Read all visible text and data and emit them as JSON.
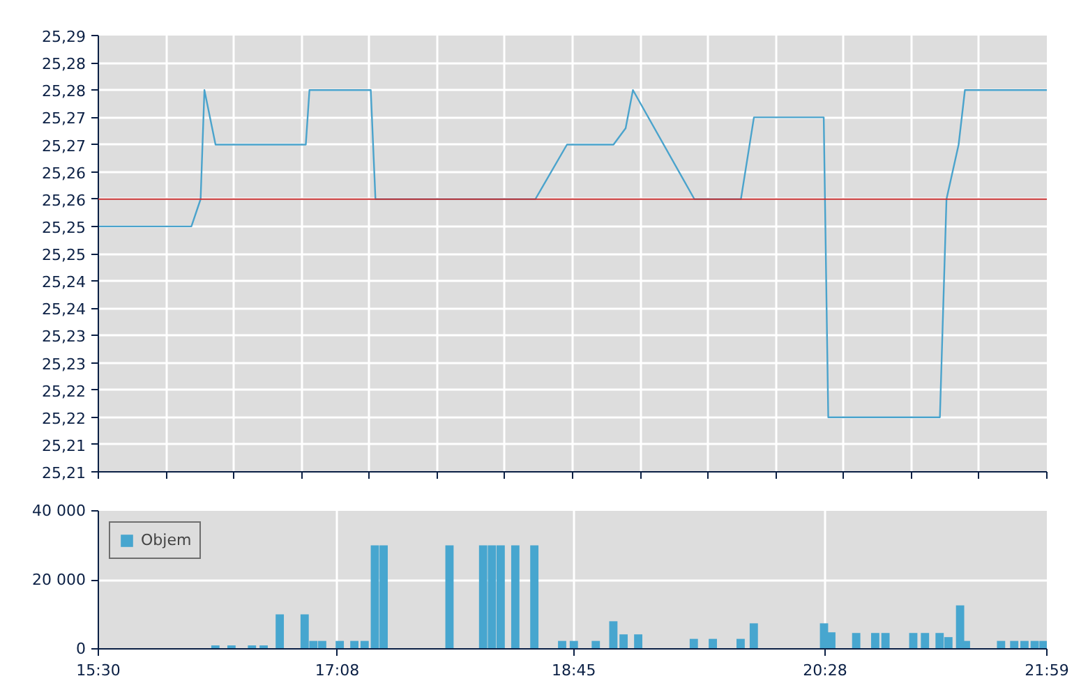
{
  "chart_data": [
    {
      "type": "line",
      "x": [
        15.5,
        16.136,
        16.199,
        16.225,
        16.301,
        16.733,
        16.918,
        16.943,
        17.362,
        17.394,
        18.487,
        18.703,
        19.021,
        19.104,
        19.154,
        19.574,
        19.892,
        19.981,
        20.458,
        20.489,
        21.252,
        21.297,
        21.38,
        21.423,
        21.983
      ],
      "series": [
        {
          "color": "#4aa3cc",
          "values": [
            25.255,
            25.255,
            25.26,
            25.28,
            25.27,
            25.27,
            25.27,
            25.28,
            25.28,
            25.26,
            25.26,
            25.27,
            25.27,
            25.273,
            25.28,
            25.26,
            25.26,
            25.275,
            25.275,
            25.22,
            25.22,
            25.26,
            25.27,
            25.28,
            25.28
          ]
        }
      ],
      "xlim": [
        15.5,
        21.983
      ],
      "xticks": [
        {
          "value": 15.5,
          "label": null
        },
        {
          "value": 15.963,
          "label": null
        },
        {
          "value": 16.426,
          "label": null
        },
        {
          "value": 16.889,
          "label": null
        },
        {
          "value": 17.352,
          "label": null
        },
        {
          "value": 17.815,
          "label": null
        },
        {
          "value": 18.279,
          "label": null
        },
        {
          "value": 18.742,
          "label": null
        },
        {
          "value": 19.205,
          "label": null
        },
        {
          "value": 19.668,
          "label": null
        },
        {
          "value": 20.131,
          "label": null
        },
        {
          "value": 20.594,
          "label": null
        },
        {
          "value": 21.057,
          "label": null
        },
        {
          "value": 21.52,
          "label": null
        },
        {
          "value": 21.983,
          "label": null
        }
      ],
      "ylim": [
        25.21,
        25.29
      ],
      "yticks": [
        {
          "value": 25.21,
          "label": "25,21"
        },
        {
          "value": 25.215,
          "label": "25,21"
        },
        {
          "value": 25.22,
          "label": "25,22"
        },
        {
          "value": 25.225,
          "label": "25,22"
        },
        {
          "value": 25.23,
          "label": "25,23"
        },
        {
          "value": 25.235,
          "label": "25,23"
        },
        {
          "value": 25.24,
          "label": "25,24"
        },
        {
          "value": 25.245,
          "label": "25,24"
        },
        {
          "value": 25.25,
          "label": "25,25"
        },
        {
          "value": 25.255,
          "label": "25,25"
        },
        {
          "value": 25.26,
          "label": "25,26"
        },
        {
          "value": 25.265,
          "label": "25,26"
        },
        {
          "value": 25.27,
          "label": "25,27"
        },
        {
          "value": 25.275,
          "label": "25,27"
        },
        {
          "value": 25.28,
          "label": "25,28"
        },
        {
          "value": 25.285,
          "label": "25,28"
        },
        {
          "value": 25.29,
          "label": "25,29"
        }
      ],
      "ref_lines": [
        {
          "axis": "y",
          "value": 25.26,
          "color": "#c83232"
        }
      ],
      "grid": true,
      "tick_labels": "y",
      "marker": "none",
      "line_style": "solid"
    },
    {
      "type": "bar",
      "x": [
        16.3,
        16.41,
        16.55,
        16.63,
        16.74,
        16.91,
        16.97,
        17.03,
        17.15,
        17.25,
        17.32,
        17.39,
        17.45,
        17.9,
        18.13,
        18.19,
        18.25,
        18.35,
        18.48,
        18.67,
        18.75,
        18.9,
        19.02,
        19.09,
        19.19,
        19.57,
        19.7,
        19.89,
        19.98,
        20.46,
        20.51,
        20.68,
        20.81,
        20.88,
        21.07,
        21.15,
        21.25,
        21.31,
        21.39,
        21.43,
        21.67,
        21.76,
        21.83,
        21.9,
        21.96
      ],
      "series": [
        {
          "name": "Objem",
          "color": "#47a6cf",
          "values": [
            1000,
            1000,
            1000,
            1000,
            10000,
            10000,
            2300,
            2300,
            2300,
            2300,
            2300,
            30000,
            30000,
            30000,
            30000,
            30000,
            30000,
            30000,
            30000,
            2300,
            2300,
            2300,
            8000,
            4200,
            4200,
            2900,
            2900,
            2900,
            7400,
            7400,
            4800,
            4600,
            4600,
            4600,
            4600,
            4600,
            4600,
            3400,
            12600,
            2300,
            2300,
            2300,
            2300,
            2300,
            2300
          ]
        }
      ],
      "xlim": [
        15.5,
        21.983
      ],
      "xticks": [
        {
          "value": 15.5,
          "label": "15:30"
        },
        {
          "value": 17.133,
          "label": "17:08"
        },
        {
          "value": 18.75,
          "label": "18:45"
        },
        {
          "value": 20.467,
          "label": "20:28"
        },
        {
          "value": 21.983,
          "label": "21:59"
        }
      ],
      "ylim": [
        0,
        40000
      ],
      "yticks": [
        {
          "value": 0,
          "label": "0"
        },
        {
          "value": 20000,
          "label": "20 000"
        },
        {
          "value": 40000,
          "label": "40 000"
        }
      ],
      "grid": true,
      "legend": "top left"
    }
  ]
}
